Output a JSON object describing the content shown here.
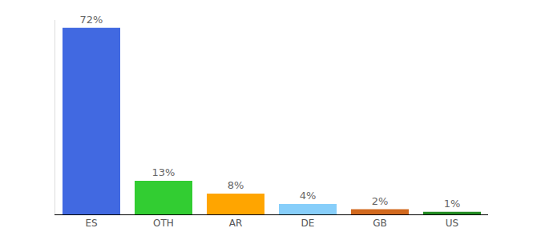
{
  "chart_data": {
    "type": "bar",
    "categories": [
      "ES",
      "OTH",
      "AR",
      "DE",
      "GB",
      "US"
    ],
    "values": [
      72,
      13,
      8,
      4,
      2,
      1
    ],
    "value_labels": [
      "72%",
      "13%",
      "8%",
      "4%",
      "2%",
      "1%"
    ],
    "colors": [
      "#4169e1",
      "#32cd32",
      "#ffa500",
      "#87cefa",
      "#d2691e",
      "#228b22"
    ],
    "ylim": [
      0,
      75
    ],
    "data_labels": true,
    "tick_labels": "x",
    "grid": false
  }
}
